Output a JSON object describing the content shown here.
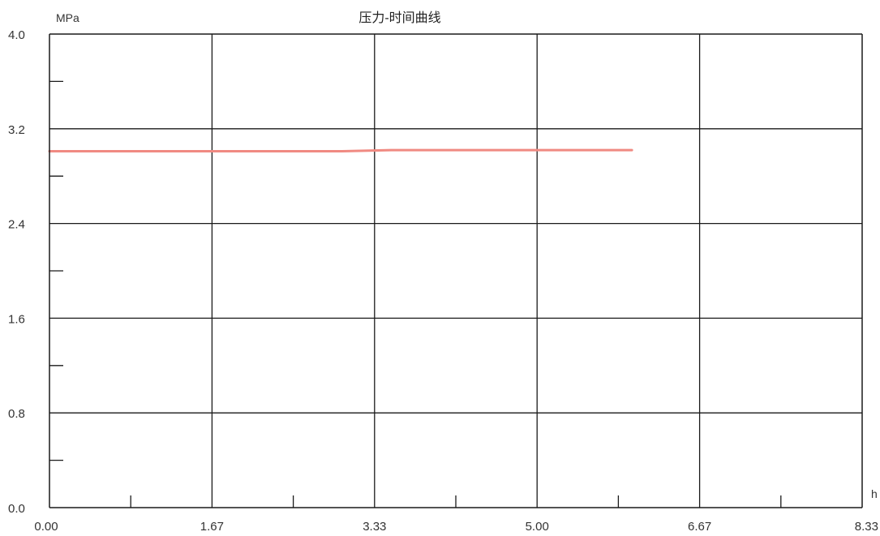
{
  "chart_data": {
    "type": "line",
    "title": "压力-时间曲线",
    "ylabel": "MPa",
    "xlabel": "h",
    "xlim": [
      0,
      8.33
    ],
    "ylim": [
      0,
      4.0
    ],
    "x_ticks": [
      "0.00",
      "1.67",
      "3.33",
      "5.00",
      "6.67",
      "8.33"
    ],
    "y_ticks": [
      "0.0",
      "0.8",
      "1.6",
      "2.4",
      "3.2",
      "4.0"
    ],
    "grid": true,
    "series": [
      {
        "color": "#f08a82",
        "x": [
          0.0,
          0.5,
          1.0,
          1.5,
          2.0,
          2.5,
          3.0,
          3.5,
          4.0,
          4.5,
          5.0,
          5.5,
          5.97
        ],
        "y": [
          3.01,
          3.01,
          3.01,
          3.01,
          3.01,
          3.01,
          3.01,
          3.02,
          3.02,
          3.02,
          3.02,
          3.02,
          3.02
        ]
      }
    ]
  }
}
